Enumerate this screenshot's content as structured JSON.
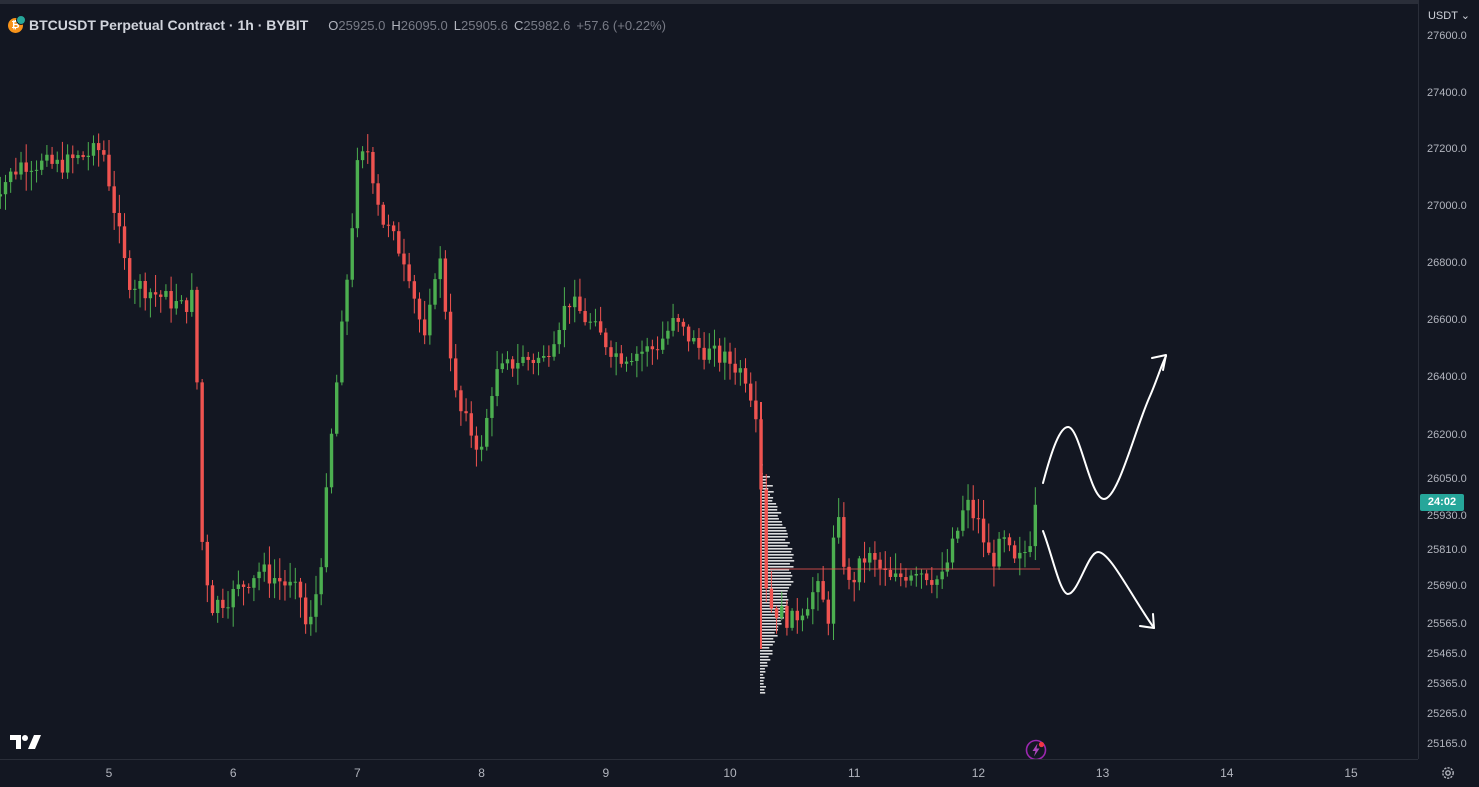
{
  "legend": {
    "coin_icon": "bitcoin-icon",
    "title": "BTCUSDT Perpetual Contract · 1h · BYBIT",
    "o_label": "O",
    "o_value": "25925.0",
    "h_label": "H",
    "h_value": "26095.0",
    "l_label": "L",
    "l_value": "25905.6",
    "c_label": "C",
    "c_value": "25982.6",
    "change": "+57.6 (+0.22%)"
  },
  "price_axis": {
    "currency": "USDT",
    "labels": [
      "27600.0",
      "27400.0",
      "27200.0",
      "27000.0",
      "26800.0",
      "26600.0",
      "26400.0",
      "26200.0",
      "26050.0",
      "25930.0",
      "25810.0",
      "25690.0",
      "25565.0",
      "25465.0",
      "25365.0",
      "25265.0",
      "25165.0"
    ],
    "countdown": "24:02"
  },
  "time_axis": {
    "labels": [
      "5",
      "6",
      "7",
      "8",
      "9",
      "10",
      "11",
      "12",
      "13",
      "14",
      "15"
    ]
  },
  "colors": {
    "background": "#131722",
    "up": "#26a69a",
    "up_bright": "#4caf50",
    "down": "#ef5350",
    "text": "#d1d4dc",
    "grid": "#2a2e39",
    "drawing": "#ffffff"
  },
  "icons": {
    "logo": "tradingview-logo-icon",
    "settings": "gear-icon",
    "alert": "lightning-icon"
  },
  "chart_data": {
    "type": "candlestick",
    "symbol": "BTCUSDT",
    "interval": "1h",
    "exchange": "BYBIT",
    "x_ticks": [
      "5",
      "6",
      "7",
      "8",
      "9",
      "10",
      "11",
      "12",
      "13",
      "14",
      "15"
    ],
    "ylim": [
      25165,
      27600
    ],
    "last_price": 25982.6,
    "path": [
      [
        4.0,
        27030
      ],
      [
        4.3,
        27170
      ],
      [
        4.6,
        27160
      ],
      [
        4.95,
        27220
      ],
      [
        5.15,
        26760
      ],
      [
        5.6,
        26660
      ],
      [
        5.7,
        26720
      ],
      [
        5.72,
        25950
      ],
      [
        5.82,
        25640
      ],
      [
        6.0,
        25680
      ],
      [
        6.2,
        25760
      ],
      [
        6.4,
        25720
      ],
      [
        6.55,
        25670
      ],
      [
        6.6,
        25530
      ],
      [
        6.7,
        25760
      ],
      [
        6.8,
        26250
      ],
      [
        6.9,
        26690
      ],
      [
        7.0,
        27150
      ],
      [
        7.08,
        27220
      ],
      [
        7.2,
        26970
      ],
      [
        7.4,
        26820
      ],
      [
        7.55,
        26520
      ],
      [
        7.65,
        26880
      ],
      [
        7.8,
        26320
      ],
      [
        8.0,
        26160
      ],
      [
        8.1,
        26420
      ],
      [
        8.3,
        26480
      ],
      [
        8.5,
        26480
      ],
      [
        8.7,
        26690
      ],
      [
        8.9,
        26590
      ],
      [
        9.1,
        26490
      ],
      [
        9.4,
        26520
      ],
      [
        9.55,
        26610
      ],
      [
        9.75,
        26520
      ],
      [
        10.0,
        26470
      ],
      [
        10.12,
        26430
      ],
      [
        10.22,
        26290
      ],
      [
        10.3,
        25650
      ],
      [
        10.5,
        25590
      ],
      [
        10.7,
        25700
      ],
      [
        10.8,
        25600
      ],
      [
        10.85,
        25980
      ],
      [
        10.95,
        25700
      ],
      [
        11.1,
        25810
      ],
      [
        11.3,
        25720
      ],
      [
        11.5,
        25770
      ],
      [
        11.7,
        25720
      ],
      [
        11.8,
        25850
      ],
      [
        11.9,
        25990
      ],
      [
        12.0,
        25920
      ],
      [
        12.1,
        25780
      ],
      [
        12.2,
        25860
      ],
      [
        12.3,
        25770
      ],
      [
        12.4,
        25840
      ],
      [
        12.48,
        25982.6
      ]
    ]
  }
}
